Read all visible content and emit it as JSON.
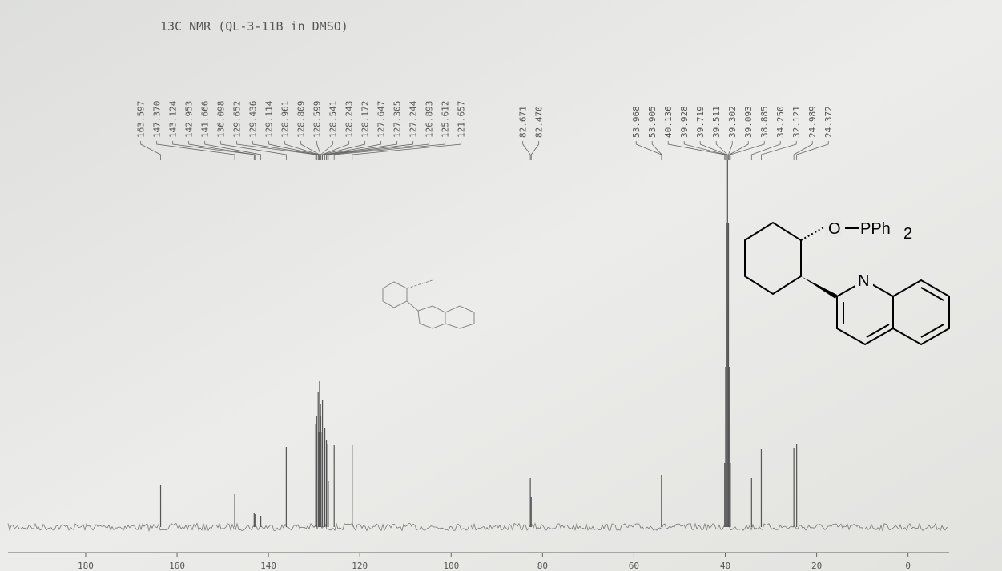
{
  "chart_data": {
    "type": "nmr",
    "title": "13C NMR (QL-3-11B in DMSO)",
    "x": [
      163.597,
      147.37,
      143.124,
      142.953,
      141.666,
      136.098,
      129.652,
      129.436,
      129.114,
      128.961,
      128.809,
      128.599,
      128.541,
      128.243,
      128.172,
      127.647,
      127.305,
      127.244,
      126.893,
      125.612,
      121.657,
      82.671,
      82.47,
      53.968,
      53.905,
      40.136,
      39.928,
      39.719,
      39.511,
      39.302,
      39.093,
      38.885,
      34.25,
      32.121,
      24.989,
      24.372
    ],
    "x_labels": [
      "163.597",
      "147.370",
      "143.124",
      "142.953",
      "141.666",
      "136.098",
      "129.652",
      "129.436",
      "129.114",
      "128.961",
      "128.809",
      "128.599",
      "128.541",
      "128.243",
      "128.172",
      "127.647",
      "127.305",
      "127.244",
      "126.893",
      "125.612",
      "121.657",
      "82.671",
      "82.470",
      "53.968",
      "53.905",
      "40.136",
      "39.928",
      "39.719",
      "39.511",
      "39.302",
      "39.093",
      "38.885",
      "34.250",
      "32.121",
      "24.989",
      "24.372"
    ],
    "values": [
      53,
      41,
      18,
      16,
      14,
      100,
      128,
      138,
      168,
      118,
      182,
      153,
      138,
      118,
      158,
      123,
      108,
      103,
      58,
      102,
      102,
      61,
      38,
      65,
      40,
      80,
      200,
      380,
      458,
      380,
      200,
      80,
      61,
      97,
      98,
      103
    ],
    "color": "#555555",
    "xlim": [
      197,
      -9
    ],
    "xticks": [
      180,
      160,
      140,
      120,
      100,
      80,
      60,
      40,
      20,
      0
    ],
    "structure_labels": [
      "O",
      "PPh",
      "2",
      "N"
    ]
  }
}
